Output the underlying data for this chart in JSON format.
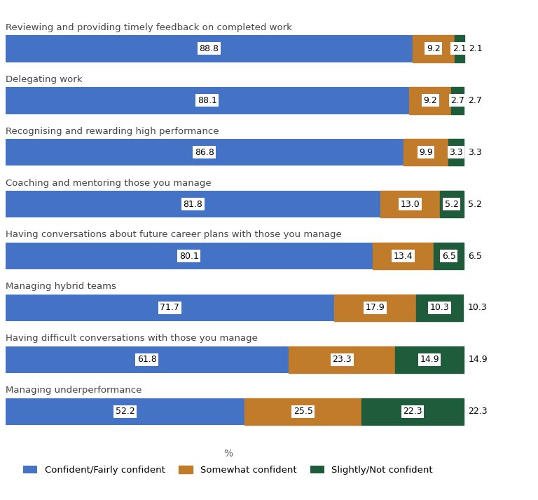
{
  "categories": [
    "Reviewing and providing timely feedback on completed work",
    "Delegating work",
    "Recognising and rewarding high performance",
    "Coaching and mentoring those you manage",
    "Having conversations about future career plans with those you manage",
    "Managing hybrid teams",
    "Having difficult conversations with those you manage",
    "Managing underperformance"
  ],
  "confident": [
    88.8,
    88.1,
    86.8,
    81.8,
    80.1,
    71.7,
    61.8,
    52.2
  ],
  "somewhat": [
    9.2,
    9.2,
    9.9,
    13.0,
    13.4,
    17.9,
    23.3,
    25.5
  ],
  "not_confident": [
    2.1,
    2.7,
    3.3,
    5.2,
    6.5,
    10.3,
    14.9,
    22.3
  ],
  "color_confident": "#4472C4",
  "color_somewhat": "#C07B2B",
  "color_not_confident": "#1F5C3C",
  "hatch_somewhat": "///",
  "background_color": "#FFFFFF",
  "label_confident": "Confident/Fairly confident",
  "label_somewhat": "Somewhat confident",
  "label_not_confident": "Slightly/Not confident",
  "bar_height": 0.52,
  "xlim": [
    0,
    108
  ],
  "legend_fontsize": 9.5,
  "category_fontsize": 9.5,
  "value_fontsize": 9.0
}
